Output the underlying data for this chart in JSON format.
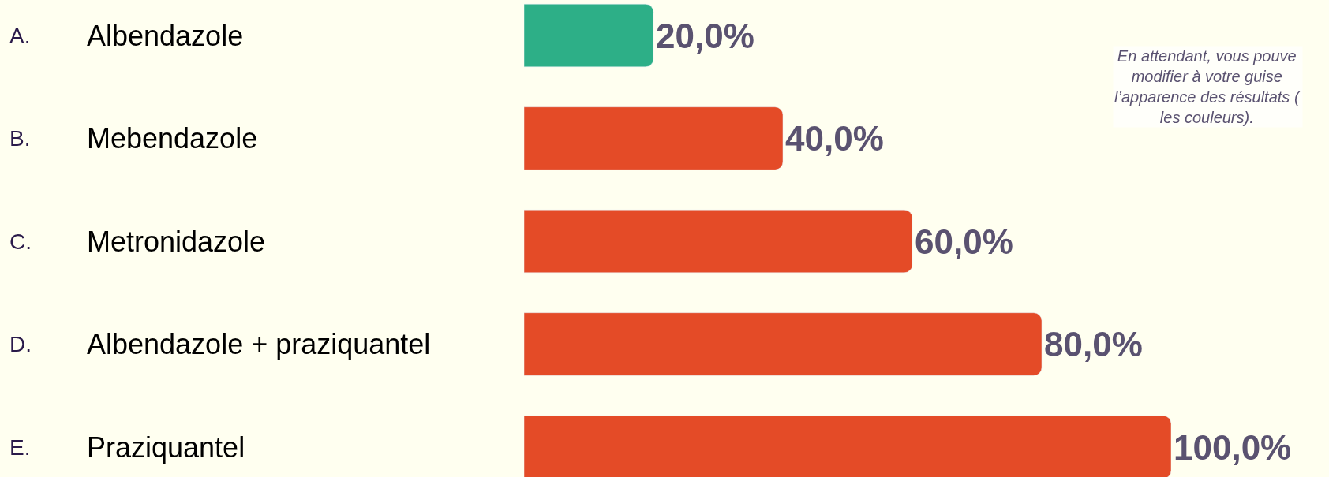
{
  "chart_data": {
    "type": "bar",
    "orientation": "horizontal",
    "categories": [
      "A. Albendazole",
      "B. Mebendazole",
      "C. Metronidazole",
      "D. Albendazole + praziquantel",
      "E. Praziquantel"
    ],
    "values": [
      20,
      40,
      60,
      80,
      100
    ],
    "colors": [
      "#2daf87",
      "#e44b27",
      "#e44b27",
      "#e44b27",
      "#e44b27"
    ],
    "value_labels": [
      "20,0%",
      "40,0%",
      "60,0%",
      "80,0%",
      "100,0%"
    ],
    "annotations": [
      "En attendant, vous pouve\nmodifier à votre guise\nl’apparence des résultats (\nles couleurs)."
    ],
    "legend": false
  }
}
